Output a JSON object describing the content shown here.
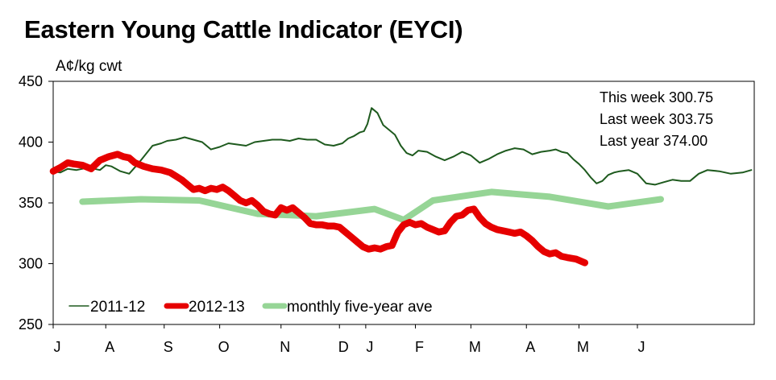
{
  "chart_data": {
    "type": "line",
    "title": "Eastern Young Cattle Indicator (EYCI)",
    "ylabel": "A¢/kg cwt",
    "xlabel": "",
    "ylim": [
      250,
      450
    ],
    "yticks": [
      250,
      300,
      350,
      400,
      450
    ],
    "xlim": [
      0,
      12
    ],
    "month_labels": [
      "J",
      "A",
      "S",
      "O",
      "N",
      "D",
      "J",
      "F",
      "M",
      "A",
      "M",
      "J"
    ],
    "month_label_x": [
      0.0,
      0.9,
      1.9,
      2.85,
      3.9,
      4.9,
      5.35,
      6.2,
      7.15,
      8.1,
      9.0,
      10.0
    ],
    "grid": false,
    "legend_position": "bottom-left",
    "annotations": [
      {
        "label": "This week",
        "value": "300.75"
      },
      {
        "label": "Last week",
        "value": "303.75"
      },
      {
        "label": "Last year ",
        "value": "374.00"
      }
    ],
    "series": [
      {
        "name": "2011-12",
        "color": "#1e5a1e",
        "style": "thin",
        "x": [
          0,
          0.12,
          0.25,
          0.4,
          0.6,
          0.8,
          0.9,
          1.0,
          1.15,
          1.3,
          1.45,
          1.55,
          1.7,
          1.85,
          1.95,
          2.1,
          2.25,
          2.4,
          2.55,
          2.7,
          2.85,
          3.0,
          3.15,
          3.3,
          3.45,
          3.6,
          3.75,
          3.9,
          4.05,
          4.2,
          4.35,
          4.5,
          4.65,
          4.8,
          4.95,
          5.05,
          5.15,
          5.25,
          5.32,
          5.38,
          5.45,
          5.55,
          5.65,
          5.75,
          5.85,
          5.95,
          6.05,
          6.15,
          6.25,
          6.4,
          6.55,
          6.7,
          6.85,
          7.0,
          7.15,
          7.3,
          7.45,
          7.6,
          7.75,
          7.9,
          8.05,
          8.2,
          8.35,
          8.5,
          8.6,
          8.7,
          8.8,
          8.9,
          9.0,
          9.1,
          9.2,
          9.3,
          9.4,
          9.5,
          9.6,
          9.7,
          9.85,
          10.0,
          10.15,
          10.3,
          10.45,
          10.6,
          10.75,
          10.9,
          11.05,
          11.2,
          11.4,
          11.6,
          11.8,
          11.95
        ],
        "y": [
          376,
          375,
          378,
          377,
          379,
          377,
          381,
          380,
          376,
          374,
          382,
          388,
          397,
          399,
          401,
          402,
          404,
          402,
          400,
          394,
          396,
          399,
          398,
          397,
          400,
          401,
          402,
          402,
          401,
          403,
          402,
          402,
          398,
          397,
          399,
          403,
          405,
          408,
          409,
          415,
          428,
          424,
          414,
          410,
          406,
          397,
          391,
          389,
          393,
          392,
          388,
          385,
          388,
          392,
          389,
          383,
          386,
          390,
          393,
          395,
          394,
          390,
          392,
          393,
          394,
          392,
          391,
          386,
          382,
          377,
          371,
          366,
          368,
          373,
          375,
          376,
          377,
          374,
          366,
          365,
          367,
          369,
          368,
          368,
          374,
          377,
          376,
          374,
          375,
          377
        ]
      },
      {
        "name": "2012-13",
        "color": "#e60000",
        "style": "thick",
        "x": [
          0,
          0.12,
          0.25,
          0.35,
          0.5,
          0.65,
          0.8,
          0.95,
          1.1,
          1.2,
          1.3,
          1.4,
          1.55,
          1.7,
          1.85,
          2.0,
          2.1,
          2.2,
          2.3,
          2.4,
          2.5,
          2.6,
          2.7,
          2.8,
          2.9,
          3.0,
          3.1,
          3.2,
          3.3,
          3.4,
          3.5,
          3.6,
          3.7,
          3.8,
          3.9,
          4.0,
          4.1,
          4.2,
          4.3,
          4.4,
          4.5,
          4.6,
          4.7,
          4.8,
          4.9,
          5.0,
          5.1,
          5.2,
          5.3,
          5.4,
          5.5,
          5.6,
          5.7,
          5.8,
          5.9,
          6.0,
          6.1,
          6.2,
          6.3,
          6.4,
          6.5,
          6.6,
          6.7,
          6.8,
          6.9,
          7.0,
          7.1,
          7.2,
          7.3,
          7.4,
          7.5,
          7.6,
          7.7,
          7.8,
          7.9,
          8.0,
          8.1,
          8.2,
          8.3,
          8.4,
          8.5,
          8.6,
          8.7,
          8.8,
          8.95,
          9.1
        ],
        "y": [
          376,
          379,
          383,
          382,
          381,
          378,
          385,
          388,
          390,
          388,
          387,
          383,
          380,
          378,
          377,
          375,
          372,
          369,
          365,
          361,
          362,
          360,
          362,
          361,
          363,
          360,
          356,
          352,
          350,
          352,
          348,
          343,
          341,
          340,
          346,
          344,
          346,
          342,
          338,
          333,
          332,
          332,
          331,
          331,
          330,
          326,
          322,
          318,
          314,
          312,
          313,
          312,
          314,
          315,
          326,
          332,
          334,
          332,
          333,
          330,
          328,
          326,
          327,
          334,
          339,
          340,
          344,
          345,
          338,
          333,
          330,
          328,
          327,
          326,
          325,
          326,
          323,
          319,
          314,
          310,
          308,
          309,
          306,
          305,
          303.75,
          300.75
        ]
      },
      {
        "name": "monthly five-year ave",
        "color": "#96d596",
        "style": "medium",
        "x": [
          0.5,
          1.5,
          2.5,
          3.5,
          4.5,
          5.5,
          6.0,
          6.5,
          7.5,
          8.5,
          9.5,
          10.4
        ],
        "y": [
          351,
          353,
          352,
          341,
          339,
          345,
          336,
          352,
          359,
          355,
          347,
          353
        ]
      }
    ]
  }
}
